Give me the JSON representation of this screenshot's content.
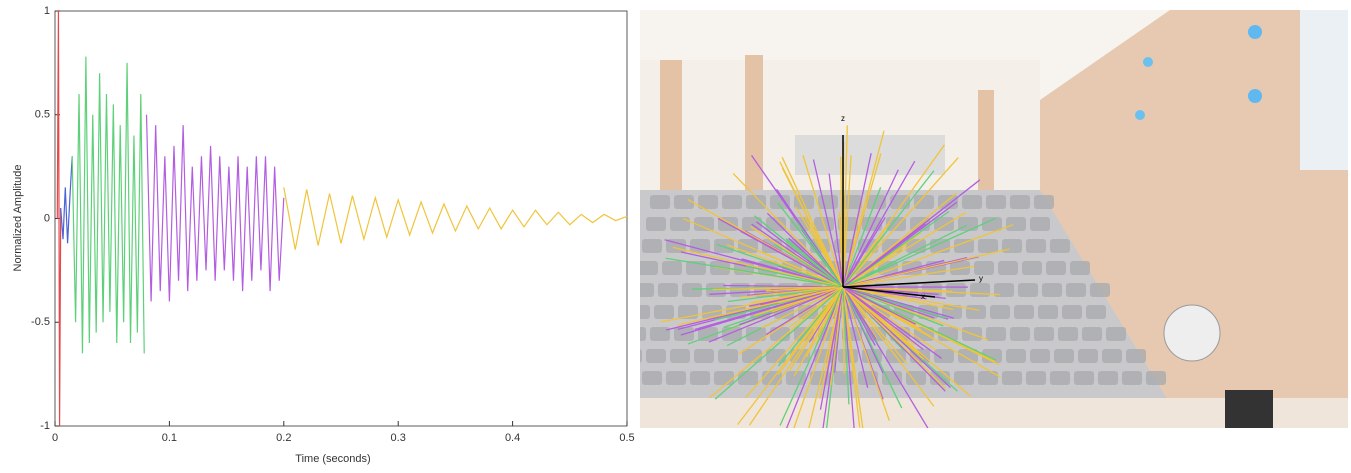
{
  "chart_data": {
    "type": "line",
    "x_label": "Time (seconds)",
    "y_label": "Normalized Amplitude",
    "xlim": [
      0,
      0.5
    ],
    "ylim": [
      -1,
      1
    ],
    "xticks": [
      0,
      0.1,
      0.2,
      0.3,
      0.4,
      0.5
    ],
    "yticks": [
      -1,
      -0.5,
      0,
      0.5,
      1
    ],
    "series": [
      {
        "color": "#e8474a",
        "x": [
          0.002,
          0.003,
          0.004,
          0.005
        ],
        "values": [
          0,
          1,
          -1,
          0.05
        ]
      },
      {
        "color": "#4a63d6",
        "x": [
          0.005,
          0.007,
          0.009,
          0.011,
          0.013,
          0.015
        ],
        "values": [
          0.05,
          -0.1,
          0.15,
          -0.12,
          0.1,
          0.3
        ]
      },
      {
        "color": "#5fd07a",
        "x": [
          0.015,
          0.018,
          0.021,
          0.024,
          0.027,
          0.03,
          0.033,
          0.036,
          0.039,
          0.042,
          0.045,
          0.048,
          0.051,
          0.054,
          0.057,
          0.06,
          0.063,
          0.066,
          0.069,
          0.072,
          0.075,
          0.078
        ],
        "values": [
          0.3,
          -0.5,
          0.6,
          -0.65,
          0.78,
          -0.6,
          0.5,
          -0.55,
          0.7,
          -0.5,
          0.6,
          -0.45,
          0.55,
          -0.6,
          0.45,
          -0.5,
          0.75,
          -0.6,
          0.4,
          -0.55,
          0.6,
          -0.65
        ]
      },
      {
        "color": "#b35ee0",
        "x": [
          0.08,
          0.084,
          0.088,
          0.092,
          0.096,
          0.1,
          0.104,
          0.108,
          0.112,
          0.116,
          0.12,
          0.124,
          0.128,
          0.132,
          0.136,
          0.14,
          0.144,
          0.148,
          0.152,
          0.156,
          0.16,
          0.164,
          0.168,
          0.172,
          0.176,
          0.18,
          0.184,
          0.188,
          0.192,
          0.196,
          0.2
        ],
        "values": [
          0.5,
          -0.4,
          0.45,
          -0.35,
          0.3,
          -0.4,
          0.35,
          -0.3,
          0.45,
          -0.35,
          0.25,
          -0.3,
          0.3,
          -0.25,
          0.35,
          -0.3,
          0.3,
          -0.25,
          0.25,
          -0.3,
          0.3,
          -0.35,
          0.25,
          -0.3,
          0.3,
          -0.25,
          0.3,
          -0.35,
          0.25,
          -0.3,
          0.1
        ]
      },
      {
        "color": "#f0c43a",
        "x": [
          0.2,
          0.21,
          0.22,
          0.23,
          0.24,
          0.25,
          0.26,
          0.27,
          0.28,
          0.29,
          0.3,
          0.31,
          0.32,
          0.33,
          0.34,
          0.35,
          0.36,
          0.37,
          0.38,
          0.39,
          0.4,
          0.41,
          0.42,
          0.43,
          0.44,
          0.45,
          0.46,
          0.47,
          0.48,
          0.49,
          0.5
        ],
        "values": [
          0.15,
          -0.15,
          0.14,
          -0.13,
          0.12,
          -0.12,
          0.11,
          -0.1,
          0.1,
          -0.09,
          0.09,
          -0.08,
          0.08,
          -0.07,
          0.07,
          -0.06,
          0.06,
          -0.05,
          0.05,
          -0.05,
          0.04,
          -0.04,
          0.04,
          -0.03,
          0.03,
          -0.03,
          0.02,
          -0.02,
          0.02,
          -0.01,
          0.01
        ]
      }
    ]
  },
  "photo": {
    "axis_labels": [
      "z",
      "y",
      "x"
    ]
  }
}
